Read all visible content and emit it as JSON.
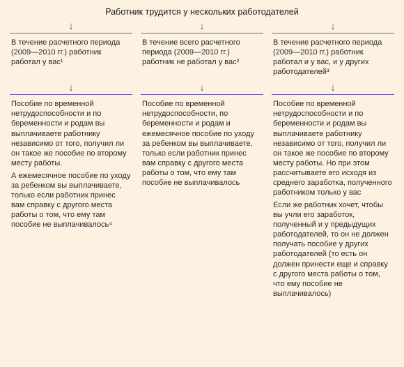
{
  "colors": {
    "background": "#fdf2e1",
    "border": "#6a5fa3",
    "arrow": "#5a4e99",
    "text": "#2a2a2a",
    "title": "#1a1a1a"
  },
  "title": "Работник трудится у нескольких работодателей",
  "columns": [
    {
      "head": "В течение расчетного периода (2009—2010 гг.) работник работал у вас¹",
      "body": [
        "Пособие по временной нетрудоспособности и по беременности и родам вы выплачиваете работнику независимо от того, получил ли он такое же пособие по второму месту работы.",
        "А ежемесячное пособие по уходу за ребенком вы выплачиваете, только если работник принес вам справку с другого места работы о том, что ему там пособие не выплачивалось⁴"
      ]
    },
    {
      "head": "В течение всего расчетного периода (2009—2010 гг.) работник не работал у вас²",
      "body": [
        "Пособие по временной нетрудоспособности, по беременности и родам и ежемесячное пособие по уходу за ребенком вы выплачиваете, только если работник принес вам справку с другого места работы о том, что ему там пособие не выплачивалось"
      ]
    },
    {
      "head": "В течение расчетного периода (2009—2010 гг.) работник работал и у вас, и у других работодателей³",
      "body": [
        "Пособие по временной нетрудоспособности и по беременности и родам вы выплачиваете работнику независимо от того, получил ли он такое же пособие по второму месту работы. Но при этом рассчитываете его исходя из среднего заработка, полученного работником только у вас",
        "Если же работник хочет, чтобы вы учли его заработок, полученный и у предыдущих работодателей, то он не должен получать пособие у других работодателей (то есть он должен принести еще и справку с другого места работы о том, что ему пособие не выплачивалось)"
      ]
    }
  ]
}
